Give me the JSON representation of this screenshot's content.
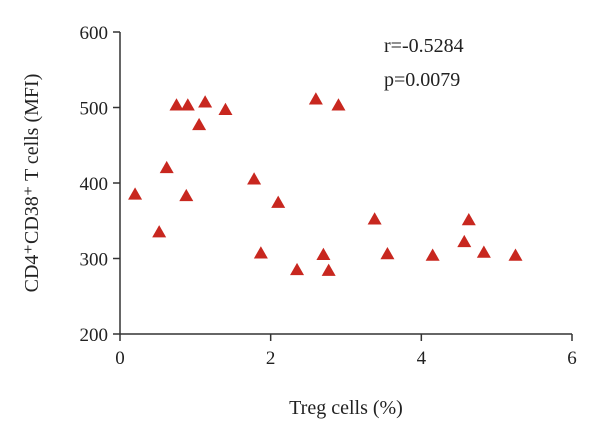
{
  "chart_data": {
    "type": "scatter",
    "title": "",
    "xlabel": "Treg cells (%)",
    "ylabel": "CD4⁺CD38⁺ T cells (MFI)",
    "xlim": [
      0,
      6
    ],
    "ylim": [
      200,
      600
    ],
    "xticks": [
      0,
      2,
      4,
      6
    ],
    "yticks": [
      200,
      300,
      400,
      500,
      600
    ],
    "grid": false,
    "legend": "none",
    "marker": "triangle",
    "marker_color": "#c8271f",
    "annotations": [
      "r=-0.5284",
      "p=0.0079"
    ],
    "series": [
      {
        "x": [
          0.2,
          0.52,
          0.62,
          0.75,
          0.88,
          0.9,
          1.05,
          1.13,
          1.4,
          1.78,
          1.87,
          2.1,
          2.35,
          2.6,
          2.7,
          2.77,
          2.9,
          3.38,
          3.55,
          4.15,
          4.57,
          4.63,
          4.83,
          5.25
        ],
        "y": [
          385,
          335,
          420,
          503,
          383,
          503,
          477,
          507,
          497,
          405,
          307,
          374,
          285,
          511,
          305,
          284,
          503,
          352,
          306,
          304,
          322,
          351,
          308,
          304
        ]
      }
    ]
  }
}
